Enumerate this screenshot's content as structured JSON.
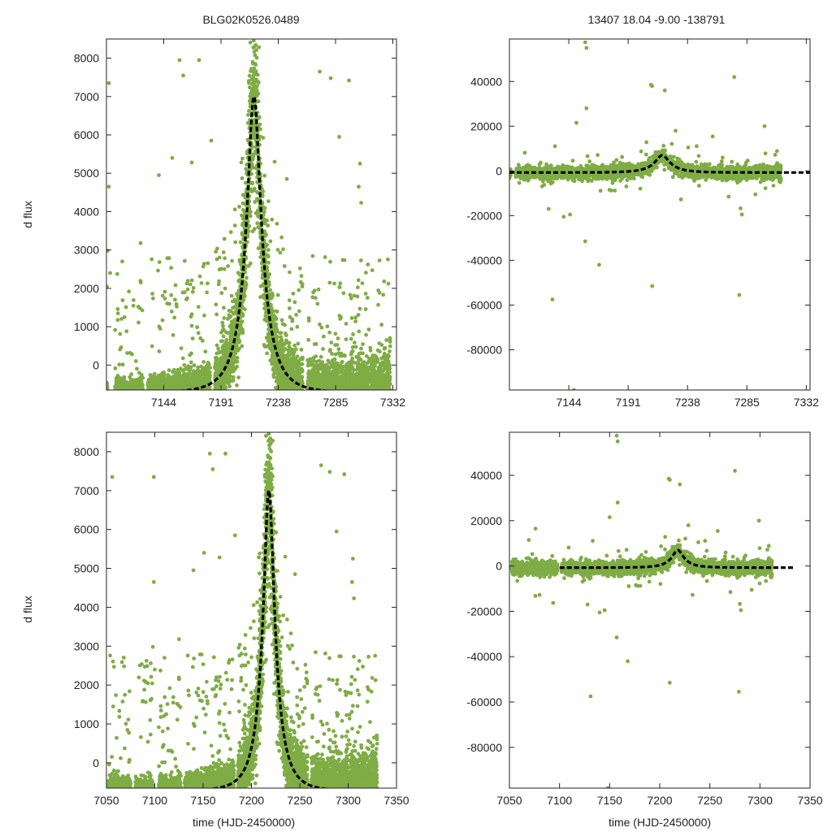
{
  "colors": {
    "points": "#7fac45",
    "model": "#000000",
    "axes": "#222222",
    "background": "#ffffff"
  },
  "figure": {
    "title_left": "BLG02K0526.0489",
    "title_right": "13407  18.04  -9.00  -138791",
    "ylabel": "d flux",
    "xlabel": "time (HJD-2450000)"
  },
  "model_params": {
    "t0": 7218,
    "peak": 7000,
    "tE": 20,
    "u0": 0.28,
    "baseline": -720
  },
  "chart_data": [
    {
      "id": "top-left",
      "type": "scatter",
      "xlim": [
        7097,
        7335
      ],
      "ylim": [
        -650,
        8500
      ],
      "xticks": [
        7144,
        7191,
        7238,
        7285,
        7332
      ],
      "xtick_labels": [
        "7144",
        "7191",
        "7238",
        "7285",
        "7332"
      ],
      "yticks": [
        0,
        1000,
        2000,
        3000,
        4000,
        5000,
        6000,
        7000,
        8000
      ],
      "ytick_labels": [
        "0",
        "1000",
        "2000",
        "3000",
        "4000",
        "5000",
        "6000",
        "7000",
        "8000"
      ],
      "xlabel": "",
      "ylabel": "d flux",
      "series": [
        {
          "name": "observations",
          "style": "dots"
        },
        {
          "name": "microlensing model",
          "style": "dashed"
        }
      ]
    },
    {
      "id": "top-right",
      "type": "scatter",
      "xlim": [
        7097,
        7335
      ],
      "ylim": [
        -98000,
        59000
      ],
      "xticks": [
        7144,
        7191,
        7238,
        7285,
        7332
      ],
      "xtick_labels": [
        "7144",
        "7191",
        "7238",
        "7285",
        "7332"
      ],
      "yticks": [
        -80000,
        -60000,
        -40000,
        -20000,
        0,
        20000,
        40000
      ],
      "ytick_labels": [
        "-80000",
        "-60000",
        "-40000",
        "-20000",
        "0",
        "20000",
        "40000"
      ],
      "xlabel": "",
      "ylabel": "",
      "series": [
        {
          "name": "observations",
          "style": "dots"
        },
        {
          "name": "microlensing model",
          "style": "dashed"
        }
      ]
    },
    {
      "id": "bottom-left",
      "type": "scatter",
      "xlim": [
        7050,
        7350
      ],
      "ylim": [
        -650,
        8500
      ],
      "xticks": [
        7050,
        7100,
        7150,
        7200,
        7250,
        7300,
        7350
      ],
      "xtick_labels": [
        "7050",
        "7100",
        "7150",
        "7200",
        "7250",
        "7300",
        "7350"
      ],
      "yticks": [
        0,
        1000,
        2000,
        3000,
        4000,
        5000,
        6000,
        7000,
        8000
      ],
      "ytick_labels": [
        "0",
        "1000",
        "2000",
        "3000",
        "4000",
        "5000",
        "6000",
        "7000",
        "8000"
      ],
      "xlabel": "time (HJD-2450000)",
      "ylabel": "d flux",
      "series": [
        {
          "name": "observations",
          "style": "dots"
        },
        {
          "name": "microlensing model",
          "style": "dashed"
        }
      ]
    },
    {
      "id": "bottom-right",
      "type": "scatter",
      "xlim": [
        7050,
        7350
      ],
      "ylim": [
        -98000,
        59000
      ],
      "xticks": [
        7050,
        7100,
        7150,
        7200,
        7250,
        7300,
        7350
      ],
      "xtick_labels": [
        "7050",
        "7100",
        "7150",
        "7200",
        "7250",
        "7300",
        "7350"
      ],
      "yticks": [
        -80000,
        -60000,
        -40000,
        -20000,
        0,
        20000,
        40000
      ],
      "ytick_labels": [
        "-80000",
        "-60000",
        "-40000",
        "-20000",
        "0",
        "20000",
        "40000"
      ],
      "xlabel": "time (HJD-2450000)",
      "ylabel": "",
      "series": [
        {
          "name": "observations",
          "style": "dots"
        },
        {
          "name": "microlensing model",
          "style": "dashed"
        }
      ]
    }
  ]
}
